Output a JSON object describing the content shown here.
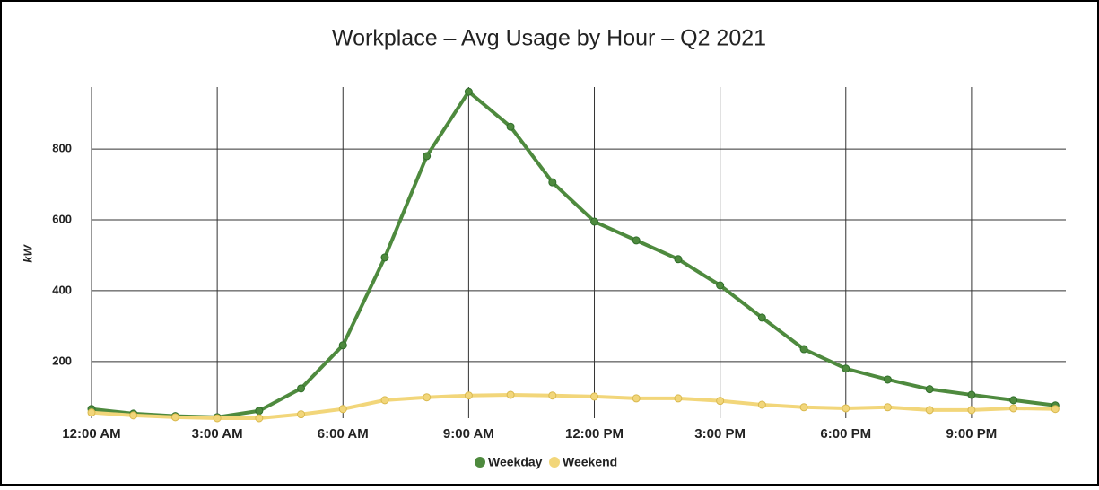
{
  "chart_data": {
    "type": "line",
    "title": "Workplace – Avg Usage by Hour – Q2 2021",
    "y_label": "kW",
    "x": [
      0,
      1,
      2,
      3,
      4,
      5,
      6,
      7,
      8,
      9,
      10,
      11,
      12,
      13,
      14,
      15,
      16,
      17,
      18,
      19,
      20,
      21,
      22,
      23
    ],
    "series": [
      {
        "name": "Weekday",
        "color": "#4e8a3e",
        "values": [
          66,
          53,
          46,
          43,
          61,
          124,
          246,
          494,
          780,
          962,
          863,
          706,
          595,
          542,
          489,
          415,
          324,
          235,
          180,
          149,
          122,
          106,
          91,
          76
        ]
      },
      {
        "name": "Weekend",
        "color": "#f2d67a",
        "values": [
          56,
          48,
          43,
          40,
          40,
          51,
          66,
          91,
          99,
          104,
          106,
          104,
          101,
          96,
          96,
          89,
          78,
          71,
          68,
          71,
          63,
          63,
          68,
          66
        ]
      }
    ],
    "xlim": [
      0,
      23.25
    ],
    "xticks": [
      {
        "value": 0,
        "label": "12:00 AM"
      },
      {
        "value": 3,
        "label": "3:00 AM"
      },
      {
        "value": 6,
        "label": "6:00 AM"
      },
      {
        "value": 9,
        "label": "9:00 AM"
      },
      {
        "value": 12,
        "label": "12:00 PM"
      },
      {
        "value": 15,
        "label": "3:00 PM"
      },
      {
        "value": 18,
        "label": "6:00 PM"
      },
      {
        "value": 21,
        "label": "9:00 PM"
      }
    ],
    "ylim": [
      40,
      975
    ],
    "yticks": [
      200,
      400,
      600,
      800
    ],
    "grid": true,
    "legend": "bottom"
  }
}
